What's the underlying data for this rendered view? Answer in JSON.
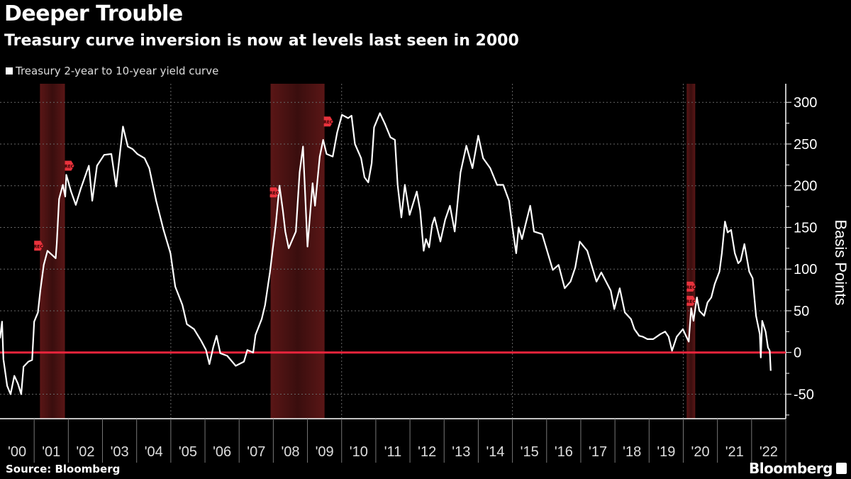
{
  "header": {
    "title": "Deeper Trouble",
    "subtitle": "Treasury curve inversion is now at levels last seen in 2000"
  },
  "footer": {
    "source": "Source: Bloomberg",
    "brand": "Bloomberg"
  },
  "colors": {
    "background": "#000000",
    "series": "#ffffff",
    "zero_line": "#e8243c",
    "recession_shade": "#5a1616",
    "rec_marker": "#e8323c",
    "event_dot": "#f0a030"
  },
  "chart_data": {
    "type": "line",
    "title": "Deeper Trouble",
    "subtitle": "Treasury curve inversion is now at levels last seen in 2000",
    "ylabel": "Basis Points",
    "xlabel": "",
    "ylim": [
      -80,
      320
    ],
    "xlim": [
      2000,
      2023
    ],
    "y_ticks": [
      -50,
      0,
      50,
      100,
      150,
      200,
      250,
      300
    ],
    "x_tick_labels": [
      "'00",
      "'01",
      "'02",
      "'03",
      "'04",
      "'05",
      "'06",
      "'07",
      "'08",
      "'09",
      "'10",
      "'11",
      "'12",
      "'13",
      "'14",
      "'15",
      "'16",
      "'17",
      "'18",
      "'19",
      "'20",
      "'21",
      "'22"
    ],
    "grid": true,
    "legend_position": "top-left",
    "legend": [
      "Treasury 2-year to 10-year yield curve"
    ],
    "reference_line": {
      "value": 0
    },
    "recessions": [
      [
        2001.17,
        2001.9
      ],
      [
        2007.92,
        2009.5
      ],
      [
        2020.1,
        2020.35
      ]
    ],
    "annotations": [
      {
        "label": "REC",
        "x": 2001.0,
        "y": 128
      },
      {
        "label": "REC",
        "x": 2001.9,
        "y": 224
      },
      {
        "label": "REC",
        "x": 2007.9,
        "y": 192
      },
      {
        "label": "REC",
        "x": 2009.48,
        "y": 277
      },
      {
        "label": "REC",
        "x": 2020.1,
        "y": 79
      },
      {
        "label": "REC",
        "x": 2020.1,
        "y": 62
      }
    ],
    "series": [
      {
        "name": "Treasury 2-year to 10-year yield curve",
        "points": [
          [
            2000.0,
            17
          ],
          [
            2000.06,
            37
          ],
          [
            2000.1,
            -8
          ],
          [
            2000.21,
            -40
          ],
          [
            2000.31,
            -50
          ],
          [
            2000.42,
            -28
          ],
          [
            2000.52,
            -37
          ],
          [
            2000.62,
            -50
          ],
          [
            2000.69,
            -17
          ],
          [
            2000.83,
            -11
          ],
          [
            2000.94,
            -9
          ],
          [
            2001.0,
            37
          ],
          [
            2001.11,
            48
          ],
          [
            2001.18,
            74
          ],
          [
            2001.28,
            105
          ],
          [
            2001.39,
            122
          ],
          [
            2001.63,
            113
          ],
          [
            2001.66,
            130
          ],
          [
            2001.73,
            184
          ],
          [
            2001.84,
            201
          ],
          [
            2001.91,
            187
          ],
          [
            2001.94,
            213
          ],
          [
            2002.08,
            193
          ],
          [
            2002.22,
            177
          ],
          [
            2002.36,
            196
          ],
          [
            2002.6,
            224
          ],
          [
            2002.7,
            182
          ],
          [
            2002.84,
            224
          ],
          [
            2003.05,
            237
          ],
          [
            2003.26,
            238
          ],
          [
            2003.4,
            199
          ],
          [
            2003.5,
            235
          ],
          [
            2003.6,
            271
          ],
          [
            2003.74,
            247
          ],
          [
            2003.88,
            244
          ],
          [
            2004.02,
            238
          ],
          [
            2004.23,
            233
          ],
          [
            2004.37,
            221
          ],
          [
            2004.57,
            182
          ],
          [
            2004.78,
            148
          ],
          [
            2004.99,
            119
          ],
          [
            2005.13,
            79
          ],
          [
            2005.34,
            57
          ],
          [
            2005.47,
            34
          ],
          [
            2005.68,
            28
          ],
          [
            2005.89,
            14
          ],
          [
            2006.03,
            3
          ],
          [
            2006.13,
            -14
          ],
          [
            2006.24,
            6
          ],
          [
            2006.34,
            20
          ],
          [
            2006.45,
            -1
          ],
          [
            2006.65,
            -4
          ],
          [
            2006.9,
            -16
          ],
          [
            2007.14,
            -11
          ],
          [
            2007.24,
            3
          ],
          [
            2007.41,
            0
          ],
          [
            2007.48,
            21
          ],
          [
            2007.66,
            40
          ],
          [
            2007.76,
            57
          ],
          [
            2007.9,
            96
          ],
          [
            2008.07,
            153
          ],
          [
            2008.18,
            200
          ],
          [
            2008.28,
            170
          ],
          [
            2008.35,
            145
          ],
          [
            2008.45,
            125
          ],
          [
            2008.66,
            145
          ],
          [
            2008.77,
            216
          ],
          [
            2008.87,
            247
          ],
          [
            2009.0,
            127
          ],
          [
            2009.15,
            203
          ],
          [
            2009.22,
            176
          ],
          [
            2009.36,
            235
          ],
          [
            2009.46,
            255
          ],
          [
            2009.56,
            238
          ],
          [
            2009.74,
            235
          ],
          [
            2009.87,
            264
          ],
          [
            2010.01,
            285
          ],
          [
            2010.19,
            281
          ],
          [
            2010.29,
            284
          ],
          [
            2010.39,
            250
          ],
          [
            2010.57,
            233
          ],
          [
            2010.67,
            210
          ],
          [
            2010.78,
            204
          ],
          [
            2010.88,
            227
          ],
          [
            2010.95,
            270
          ],
          [
            2011.12,
            287
          ],
          [
            2011.26,
            275
          ],
          [
            2011.43,
            258
          ],
          [
            2011.56,
            255
          ],
          [
            2011.64,
            201
          ],
          [
            2011.75,
            162
          ],
          [
            2011.85,
            201
          ],
          [
            2011.99,
            165
          ],
          [
            2012.2,
            193
          ],
          [
            2012.3,
            170
          ],
          [
            2012.4,
            122
          ],
          [
            2012.47,
            136
          ],
          [
            2012.56,
            126
          ],
          [
            2012.65,
            153
          ],
          [
            2012.72,
            162
          ],
          [
            2012.89,
            133
          ],
          [
            2013.03,
            159
          ],
          [
            2013.17,
            176
          ],
          [
            2013.31,
            145
          ],
          [
            2013.48,
            216
          ],
          [
            2013.65,
            248
          ],
          [
            2013.83,
            221
          ],
          [
            2014.0,
            260
          ],
          [
            2014.14,
            233
          ],
          [
            2014.35,
            221
          ],
          [
            2014.55,
            201
          ],
          [
            2014.73,
            201
          ],
          [
            2014.9,
            182
          ],
          [
            2015.0,
            150
          ],
          [
            2015.11,
            119
          ],
          [
            2015.18,
            150
          ],
          [
            2015.28,
            136
          ],
          [
            2015.38,
            153
          ],
          [
            2015.52,
            176
          ],
          [
            2015.63,
            145
          ],
          [
            2015.87,
            142
          ],
          [
            2016.18,
            99
          ],
          [
            2016.35,
            105
          ],
          [
            2016.53,
            77
          ],
          [
            2016.7,
            85
          ],
          [
            2016.84,
            102
          ],
          [
            2016.97,
            133
          ],
          [
            2017.19,
            122
          ],
          [
            2017.46,
            85
          ],
          [
            2017.6,
            96
          ],
          [
            2017.88,
            74
          ],
          [
            2017.98,
            52
          ],
          [
            2018.14,
            77
          ],
          [
            2018.29,
            48
          ],
          [
            2018.47,
            40
          ],
          [
            2018.57,
            28
          ],
          [
            2018.71,
            20
          ],
          [
            2018.81,
            19
          ],
          [
            2018.95,
            16
          ],
          [
            2019.12,
            16
          ],
          [
            2019.33,
            22
          ],
          [
            2019.47,
            25
          ],
          [
            2019.57,
            19
          ],
          [
            2019.67,
            2
          ],
          [
            2019.81,
            19
          ],
          [
            2019.99,
            28
          ],
          [
            2020.09,
            19
          ],
          [
            2020.16,
            13
          ],
          [
            2020.23,
            53
          ],
          [
            2020.3,
            38
          ],
          [
            2020.4,
            66
          ],
          [
            2020.47,
            50
          ],
          [
            2020.61,
            44
          ],
          [
            2020.71,
            60
          ],
          [
            2020.82,
            66
          ],
          [
            2020.92,
            82
          ],
          [
            2021.06,
            97
          ],
          [
            2021.13,
            119
          ],
          [
            2021.22,
            157
          ],
          [
            2021.3,
            144
          ],
          [
            2021.4,
            147
          ],
          [
            2021.51,
            119
          ],
          [
            2021.61,
            107
          ],
          [
            2021.68,
            110
          ],
          [
            2021.79,
            130
          ],
          [
            2021.93,
            97
          ],
          [
            2022.03,
            89
          ],
          [
            2022.13,
            44
          ],
          [
            2022.24,
            22
          ],
          [
            2022.27,
            -6
          ],
          [
            2022.31,
            38
          ],
          [
            2022.41,
            25
          ],
          [
            2022.48,
            6
          ],
          [
            2022.53,
            2
          ],
          [
            2022.56,
            -22
          ]
        ]
      }
    ]
  }
}
